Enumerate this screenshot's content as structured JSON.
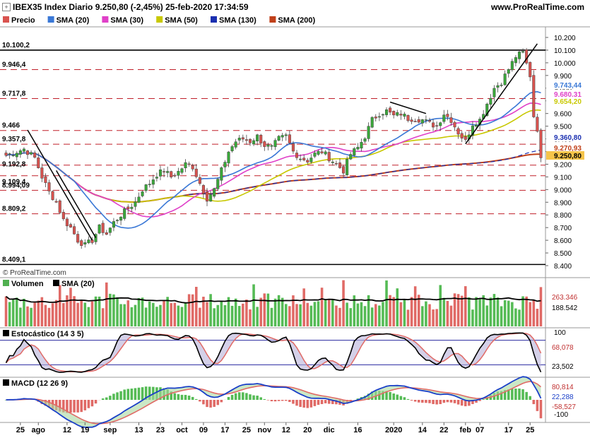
{
  "header": {
    "title": "IBEX35 Index Diario 9.250,80 (-2,45%) 25-feb-2020 17:34:59",
    "site": "www.ProRealTime.com"
  },
  "legend": {
    "items": [
      {
        "label": "Precio",
        "color": "#d9534f"
      },
      {
        "label": "SMA (20)",
        "color": "#3a78d6"
      },
      {
        "label": "SMA (30)",
        "color": "#e040c8"
      },
      {
        "label": "SMA (50)",
        "color": "#c8c800"
      },
      {
        "label": "SMA (130)",
        "color": "#1a2fb0"
      },
      {
        "label": "SMA (200)",
        "color": "#c0401a"
      }
    ]
  },
  "watermark": "© ProRealTime.com",
  "price_panel": {
    "level_labels": [
      "10.100,2",
      "9.946,4",
      "9.717,8",
      "9.466",
      "9.357,8",
      "9.192,8",
      "9.109,4",
      "8.994,09",
      "8.809,2",
      "8.409,1"
    ],
    "y_ticks": [
      "10.200",
      "10.100",
      "10.000",
      "9.900",
      "9.800",
      "9.700",
      "9.600",
      "9.500",
      "9.400",
      "9.300",
      "9.200",
      "9.100",
      "9.000",
      "8.900",
      "8.800",
      "8.700",
      "8.600",
      "8.500",
      "8.400"
    ],
    "right_badges": [
      {
        "text": "9.743,44",
        "color": "#3a78d6"
      },
      {
        "text": "9.680,31",
        "color": "#e040c8"
      },
      {
        "text": "9.654,20",
        "color": "#c8c800"
      },
      {
        "text": "9.360,80",
        "color": "#1a2fb0"
      },
      {
        "text": "9.270,93",
        "color": "#c0401a"
      },
      {
        "text": "9.250,80",
        "color": "#d9534f"
      }
    ]
  },
  "volume_panel": {
    "legend": [
      {
        "label": "Volumen",
        "color": "#50b050"
      },
      {
        "label": "SMA (20)",
        "color": "#000000"
      }
    ],
    "badges": [
      "263.346",
      "188.542"
    ]
  },
  "stoch_panel": {
    "legend": "Estocástico (14 3 5)",
    "y_ticks": [
      "100"
    ],
    "badges": [
      "68,078",
      "23,502"
    ]
  },
  "macd_panel": {
    "legend": "MACD (12 26 9)",
    "y_ticks": [
      "-100"
    ],
    "badges": [
      "80,814",
      "22,288",
      "-58,527"
    ]
  },
  "x_axis": {
    "labels": [
      "25",
      "ago",
      "12",
      "19",
      "sep",
      "13",
      "23",
      "oct",
      "09",
      "17",
      "25",
      "nov",
      "12",
      "20",
      "dic",
      "16",
      "2020",
      "14",
      "22",
      "feb",
      "07",
      "17",
      "25"
    ]
  },
  "chart_data": {
    "type": "candlestick",
    "title": "IBEX35 Index Diario",
    "ylim": [
      8400,
      10200
    ],
    "n_bars": 150,
    "close_anchors": [
      [
        0,
        9270
      ],
      [
        5,
        9320
      ],
      [
        8,
        9250
      ],
      [
        10,
        9100
      ],
      [
        12,
        8980
      ],
      [
        14,
        8900
      ],
      [
        16,
        8760
      ],
      [
        18,
        8700
      ],
      [
        20,
        8600
      ],
      [
        22,
        8560
      ],
      [
        24,
        8600
      ],
      [
        26,
        8700
      ],
      [
        28,
        8650
      ],
      [
        30,
        8740
      ],
      [
        32,
        8800
      ],
      [
        34,
        8850
      ],
      [
        36,
        8900
      ],
      [
        38,
        9000
      ],
      [
        40,
        9050
      ],
      [
        42,
        9120
      ],
      [
        44,
        9150
      ],
      [
        46,
        9100
      ],
      [
        48,
        9140
      ],
      [
        50,
        9200
      ],
      [
        52,
        9180
      ],
      [
        54,
        9050
      ],
      [
        56,
        8930
      ],
      [
        58,
        9000
      ],
      [
        60,
        9150
      ],
      [
        62,
        9300
      ],
      [
        64,
        9380
      ],
      [
        66,
        9400
      ],
      [
        68,
        9380
      ],
      [
        70,
        9420
      ],
      [
        72,
        9350
      ],
      [
        74,
        9330
      ],
      [
        76,
        9400
      ],
      [
        78,
        9420
      ],
      [
        80,
        9300
      ],
      [
        82,
        9250
      ],
      [
        84,
        9230
      ],
      [
        86,
        9280
      ],
      [
        88,
        9300
      ],
      [
        90,
        9250
      ],
      [
        92,
        9200
      ],
      [
        94,
        9150
      ],
      [
        96,
        9280
      ],
      [
        98,
        9330
      ],
      [
        100,
        9420
      ],
      [
        102,
        9550
      ],
      [
        104,
        9600
      ],
      [
        106,
        9620
      ],
      [
        108,
        9580
      ],
      [
        110,
        9600
      ],
      [
        112,
        9560
      ],
      [
        114,
        9560
      ],
      [
        116,
        9550
      ],
      [
        118,
        9520
      ],
      [
        120,
        9500
      ],
      [
        122,
        9600
      ],
      [
        124,
        9550
      ],
      [
        126,
        9450
      ],
      [
        128,
        9380
      ],
      [
        130,
        9520
      ],
      [
        132,
        9550
      ],
      [
        134,
        9680
      ],
      [
        136,
        9800
      ],
      [
        138,
        9850
      ],
      [
        140,
        9950
      ],
      [
        142,
        10050
      ],
      [
        144,
        10080
      ],
      [
        146,
        9900
      ],
      [
        147,
        9580
      ],
      [
        148,
        9480
      ],
      [
        149,
        9250
      ]
    ],
    "h_levels": [
      10100.2,
      9946.4,
      9717.8,
      9466,
      9357.8,
      9192.8,
      9109.4,
      8994.09,
      8809.2,
      8409.1
    ],
    "last": {
      "close": 9250.8,
      "sma20": 9743.44,
      "sma30": 9680.31,
      "sma50": 9654.2,
      "sma130": 9360.8,
      "sma200": 9270.93
    },
    "volume": {
      "last": 263346,
      "sma20": 188542
    },
    "stochastic": {
      "k": 68.078,
      "d": 23.502
    },
    "macd": {
      "line": 80.814,
      "signal": 22.288,
      "hist": -58.527
    }
  }
}
